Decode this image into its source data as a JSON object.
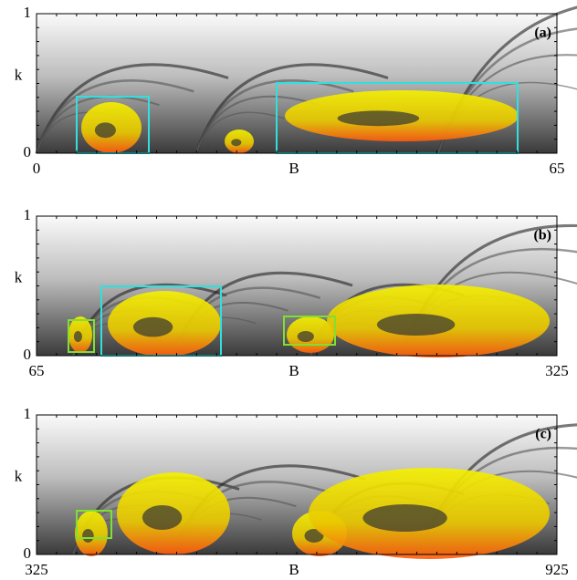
{
  "chart_data": [
    {
      "type": "heatmap",
      "label": "(a)",
      "xlabel": "B",
      "ylabel": "k",
      "xlim": [
        0,
        65
      ],
      "xticks": [
        0,
        65
      ],
      "ylim": [
        0,
        1
      ],
      "yticks": [
        0,
        1
      ]
    },
    {
      "type": "heatmap",
      "label": "(b)",
      "xlabel": "B",
      "ylabel": "k",
      "xlim": [
        65,
        325
      ],
      "xticks": [
        65,
        325
      ],
      "ylim": [
        0,
        1
      ],
      "yticks": [
        0,
        1
      ]
    },
    {
      "type": "heatmap",
      "label": "(c)",
      "xlabel": "B",
      "ylabel": "k",
      "xlim": [
        325,
        925
      ],
      "xticks": [
        325,
        925
      ],
      "ylim": [
        0,
        1
      ],
      "yticks": [
        0,
        1
      ]
    }
  ]
}
